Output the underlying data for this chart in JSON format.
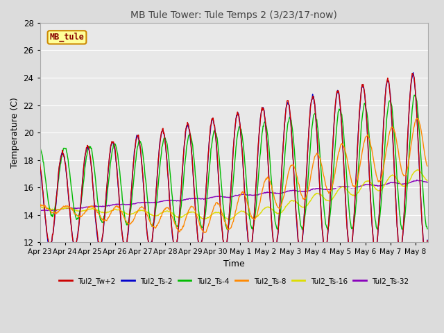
{
  "title": "MB Tule Tower: Tule Temps 2 (3/23/17-now)",
  "xlabel": "Time",
  "ylabel": "Temperature (C)",
  "ylim": [
    12,
    28
  ],
  "yticks": [
    12,
    14,
    16,
    18,
    20,
    22,
    24,
    26,
    28
  ],
  "bg_color": "#dcdcdc",
  "plot_bg_color": "#e8e8e8",
  "grid_color": "#ffffff",
  "colors": {
    "Tul2_Tw+2": "#cc0000",
    "Tul2_Ts-2": "#0000cc",
    "Tul2_Ts-4": "#00bb00",
    "Tul2_Ts-8": "#ff8800",
    "Tul2_Ts-16": "#dddd00",
    "Tul2_Ts-32": "#8800bb"
  },
  "x_tick_labels": [
    "Apr 23",
    "Apr 24",
    "Apr 25",
    "Apr 26",
    "Apr 27",
    "Apr 28",
    "Apr 29",
    "Apr 30",
    "May 1",
    "May 2",
    "May 3",
    "May 4",
    "May 5",
    "May 6",
    "May 7",
    "May 8"
  ],
  "legend_box_color": "#ffff99",
  "legend_box_edge": "#cc8800",
  "legend_text": "MB_tule",
  "legend_text_color": "#880000"
}
